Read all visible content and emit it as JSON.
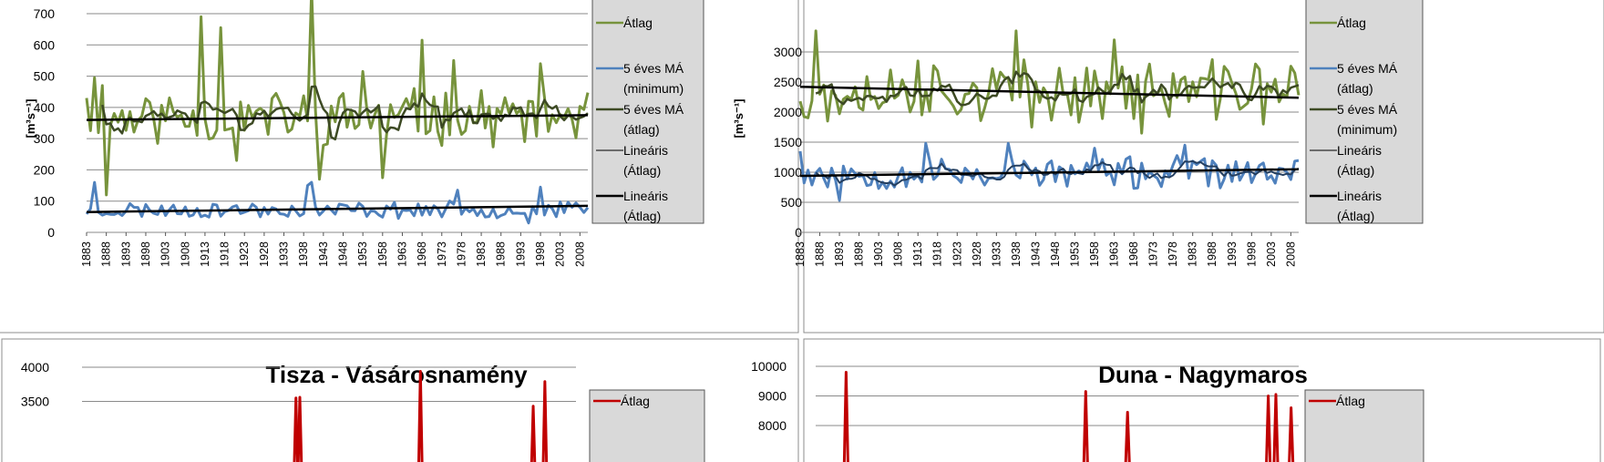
{
  "chart_data": [
    {
      "type": "line",
      "title": "",
      "ylabel": "[m³s⁻¹]",
      "ylim": [
        0,
        700
      ],
      "yticks": [
        0,
        100,
        200,
        300,
        400,
        500,
        600,
        700
      ],
      "xlim": [
        1883,
        2010
      ],
      "xticks": [
        "1883",
        "1888",
        "1893",
        "1898",
        "1903",
        "1908",
        "1913",
        "1918",
        "1923",
        "1928",
        "1933",
        "1938",
        "1943",
        "1948",
        "1953",
        "1958",
        "1963",
        "1968",
        "1973",
        "1978",
        "1983",
        "1988",
        "1993",
        "1998",
        "2003",
        "2008"
      ],
      "grid": true,
      "legend": [
        "Átlag",
        "5 éves MÁ (minimum)",
        "5 éves MÁ (átlag)",
        "Lineáris (Átlag)",
        "Lineáris (Átlag)"
      ],
      "series": [
        {
          "name": "Átlag",
          "color": "#77933c",
          "width": 3,
          "kind": "noise",
          "start": 1883,
          "end": 2010,
          "base": 370,
          "amp": 75,
          "seed": 11,
          "spikes": [
            [
              1883,
              430
            ],
            [
              1885,
              495
            ],
            [
              1887,
              470
            ],
            [
              1888,
              120
            ],
            [
              1912,
              690
            ],
            [
              1917,
              655
            ],
            [
              1921,
              230
            ],
            [
              1940,
              780
            ],
            [
              1942,
              170
            ],
            [
              1953,
              515
            ],
            [
              1958,
              175
            ],
            [
              1968,
              615
            ],
            [
              1976,
              550
            ],
            [
              1998,
              540
            ]
          ]
        },
        {
          "name": "5 éves MÁ (átlag)",
          "color": "#3d4a24",
          "width": 2.5,
          "kind": "ma",
          "of": 0,
          "window": 5
        },
        {
          "name": "5 éves MÁ (minimum)",
          "color": "#4f81bd",
          "width": 3,
          "kind": "noise",
          "start": 1883,
          "end": 2010,
          "base": 72,
          "amp": 22,
          "seed": 23,
          "spikes": [
            [
              1885,
              160
            ],
            [
              1887,
              55
            ],
            [
              1939,
              150
            ],
            [
              1940,
              160
            ],
            [
              1977,
              135
            ],
            [
              1998,
              145
            ],
            [
              1995,
              30
            ]
          ]
        },
        {
          "name": "Lineáris (Átlag)",
          "color": "#000000",
          "width": 2.5,
          "kind": "trend",
          "from": [
            1883,
            360
          ],
          "to": [
            2010,
            375
          ]
        },
        {
          "name": "Lineáris (Átlag)",
          "color": "#000000",
          "width": 2.5,
          "kind": "trend",
          "from": [
            1883,
            65
          ],
          "to": [
            2010,
            85
          ]
        }
      ]
    },
    {
      "type": "line",
      "title": "",
      "ylabel": "[m³s⁻¹]",
      "ylim": [
        0,
        3500
      ],
      "yticks": [
        0,
        500,
        1000,
        1500,
        2000,
        2500,
        3000
      ],
      "xlim": [
        1883,
        2010
      ],
      "xticks": [
        "1883",
        "1888",
        "1893",
        "1898",
        "1903",
        "1908",
        "1913",
        "1918",
        "1923",
        "1928",
        "1933",
        "1938",
        "1943",
        "1948",
        "1953",
        "1958",
        "1963",
        "1968",
        "1973",
        "1978",
        "1983",
        "1988",
        "1993",
        "1998",
        "2003",
        "2008"
      ],
      "grid": true,
      "legend": [
        "Átlag",
        "5 éves MÁ (átlag)",
        "5 éves MÁ (minimum)",
        "Lineáris (Átlag)",
        "Lineáris (Átlag)"
      ],
      "series": [
        {
          "name": "Átlag",
          "color": "#77933c",
          "width": 3,
          "kind": "noise",
          "start": 1883,
          "end": 2010,
          "base": 2350,
          "amp": 420,
          "seed": 37,
          "spikes": [
            [
              1887,
              3350
            ],
            [
              1890,
              1850
            ],
            [
              1913,
              2850
            ],
            [
              1938,
              3350
            ],
            [
              1942,
              1750
            ],
            [
              1963,
              3200
            ],
            [
              1970,
              1650
            ],
            [
              2001,
              1800
            ],
            [
              1999,
              2800
            ]
          ]
        },
        {
          "name": "5 éves MÁ (átlag)",
          "color": "#3d4a24",
          "width": 2.5,
          "kind": "ma",
          "of": 0,
          "window": 5
        },
        {
          "name": "5 éves MÁ (minimum)",
          "color": "#4f81bd",
          "width": 3,
          "kind": "noise",
          "start": 1883,
          "end": 2010,
          "base": 980,
          "amp": 230,
          "seed": 53,
          "spikes": [
            [
              1883,
              1350
            ],
            [
              1893,
              530
            ],
            [
              1915,
              1480
            ],
            [
              1936,
              1480
            ],
            [
              1958,
              1400
            ],
            [
              1981,
              1450
            ]
          ]
        },
        {
          "name": "",
          "color": "#243f60",
          "width": 2,
          "kind": "ma",
          "of": 2,
          "window": 5
        },
        {
          "name": "Lineáris (Átlag)",
          "color": "#000000",
          "width": 2.5,
          "kind": "trend",
          "from": [
            1883,
            2420
          ],
          "to": [
            2010,
            2240
          ]
        },
        {
          "name": "Lineáris (Átlag)",
          "color": "#000000",
          "width": 2.5,
          "kind": "trend",
          "from": [
            1883,
            940
          ],
          "to": [
            2010,
            1050
          ]
        }
      ]
    },
    {
      "type": "line",
      "title": "Tisza - Vásárosnamény",
      "ylabel": "",
      "ylim": [
        3000,
        4000
      ],
      "yticks": [
        3500,
        4000
      ],
      "xlim": [
        1883,
        2010
      ],
      "xticks": [],
      "grid": true,
      "legend": [
        "Átlag"
      ],
      "series": [
        {
          "name": "Átlag",
          "color": "#c00000",
          "width": 3,
          "kind": "peaks",
          "peaks": [
            [
              1938,
              3550
            ],
            [
              1939,
              3560
            ],
            [
              1970,
              3940
            ],
            [
              1999,
              3430
            ],
            [
              2002,
              3790
            ]
          ]
        }
      ]
    },
    {
      "type": "line",
      "title": "Duna - Nagymaros",
      "ylabel": "",
      "ylim": [
        8000,
        10000
      ],
      "yticks": [
        8000,
        9000,
        10000
      ],
      "xlim": [
        1883,
        2010
      ],
      "xticks": [],
      "grid": true,
      "legend": [
        "Átlag"
      ],
      "series": [
        {
          "name": "Átlag",
          "color": "#c00000",
          "width": 3,
          "kind": "peaks",
          "peaks": [
            [
              1891,
              9800
            ],
            [
              1954,
              9150
            ],
            [
              1965,
              8450
            ],
            [
              2002,
              9000
            ],
            [
              2004,
              9050
            ],
            [
              2008,
              8600
            ]
          ]
        }
      ]
    }
  ]
}
